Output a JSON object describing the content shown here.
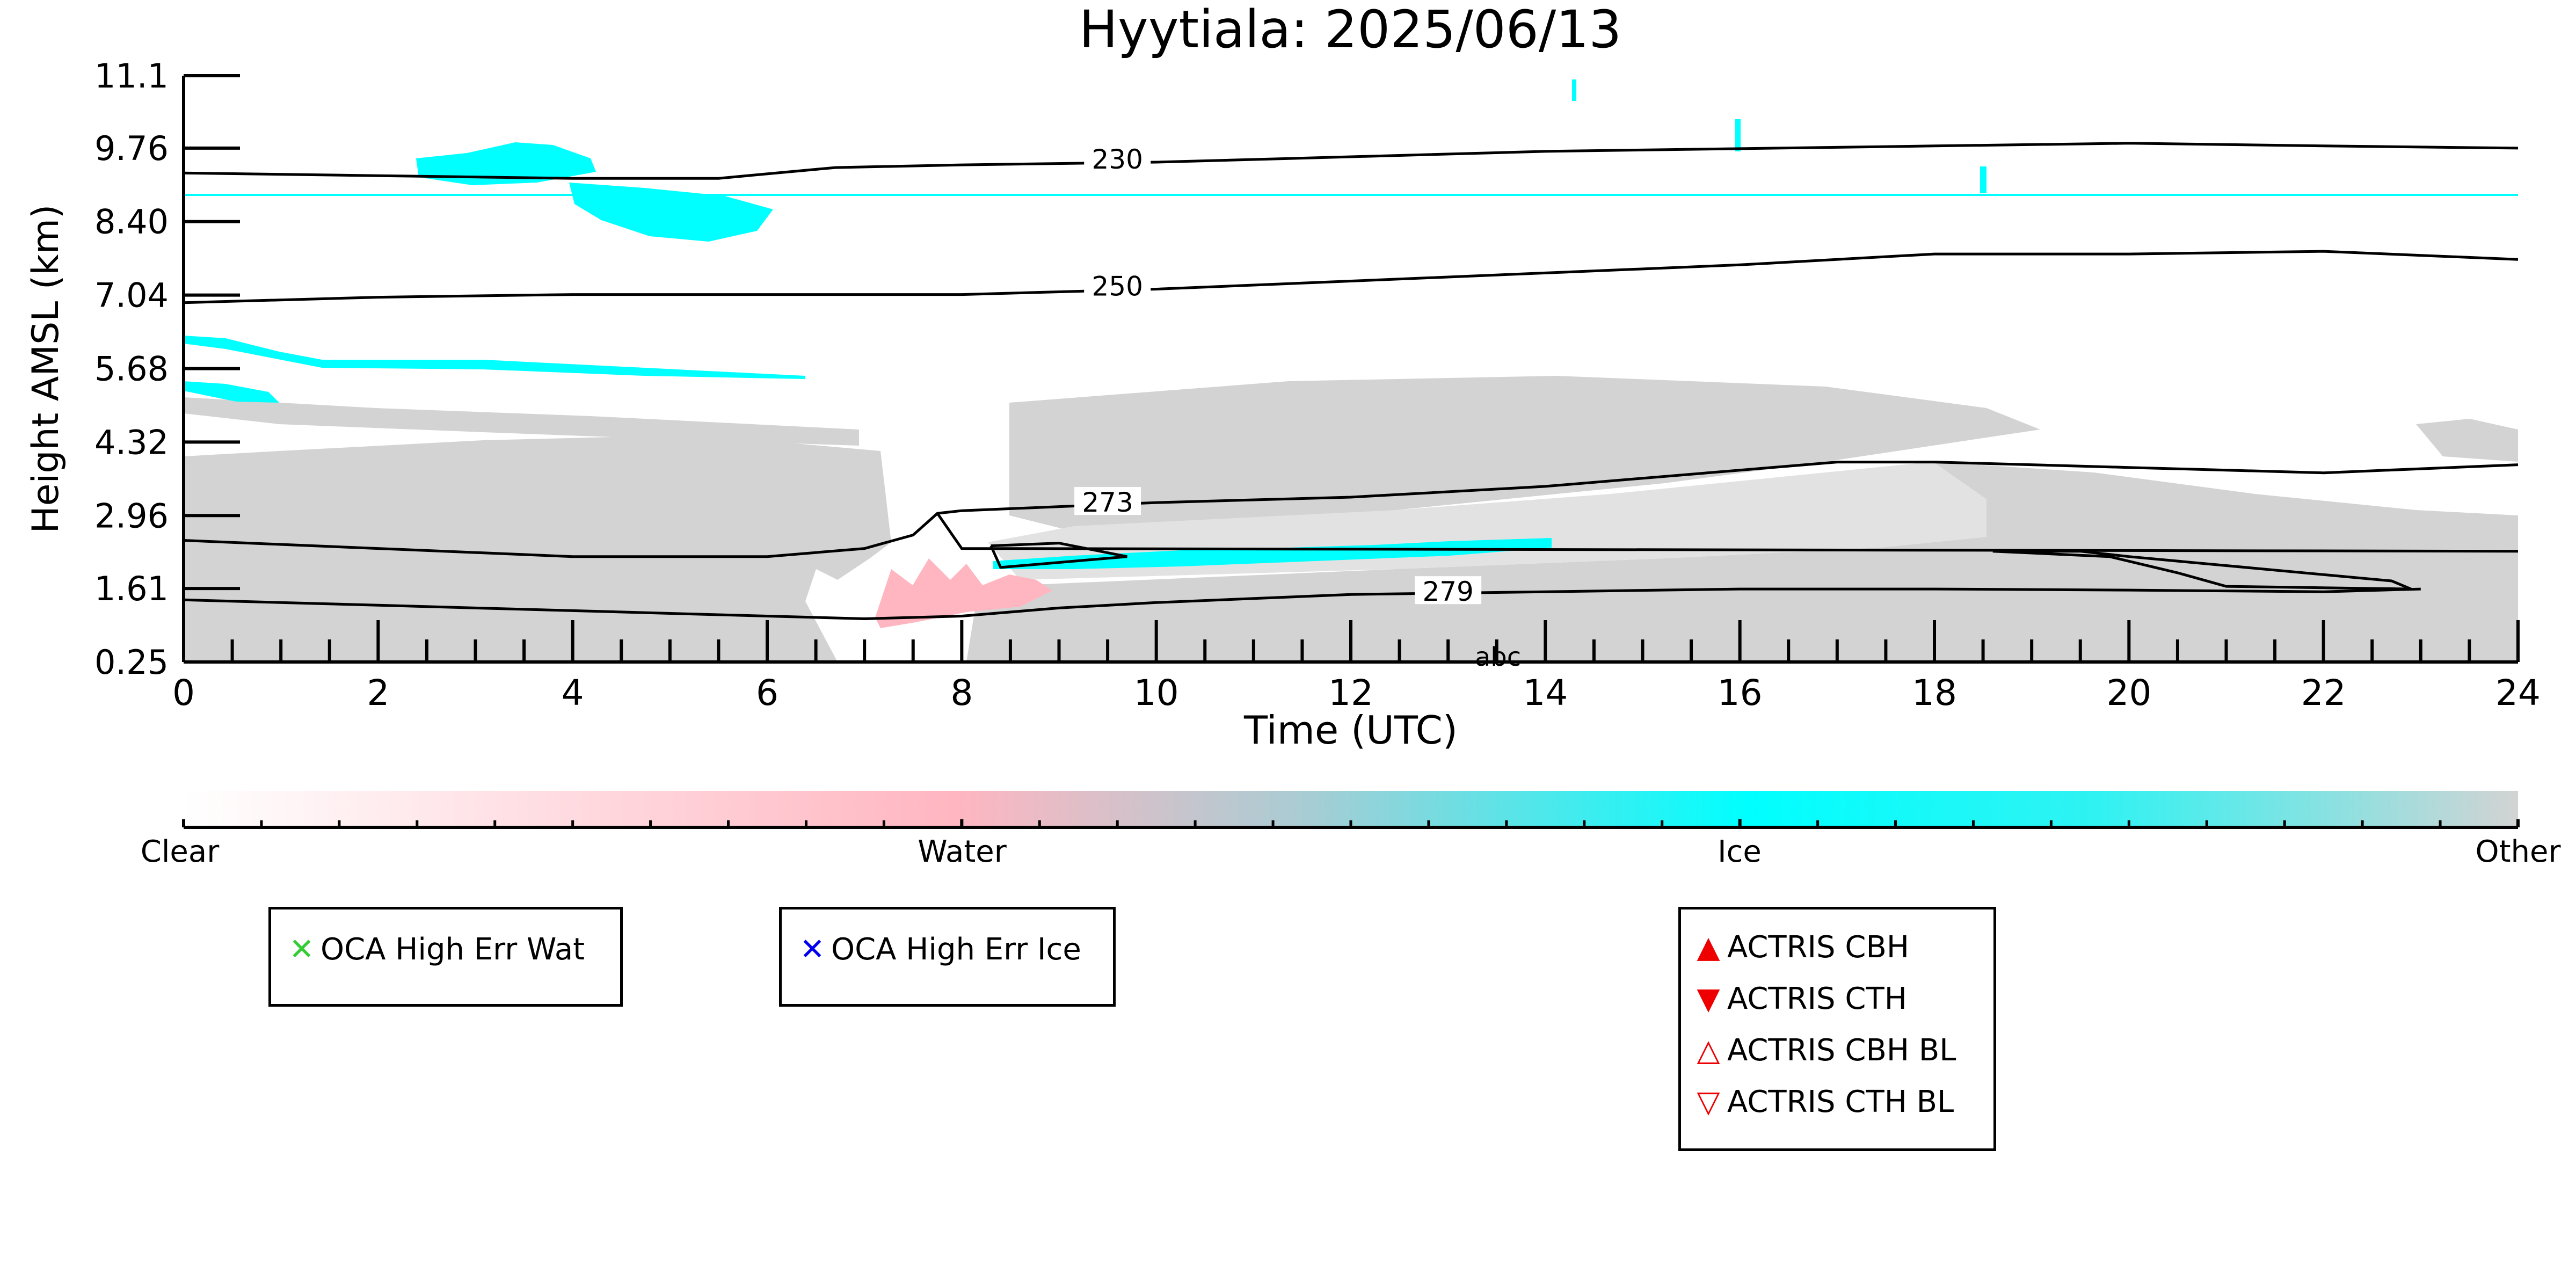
{
  "chart_data": {
    "type": "heatmap",
    "title": "Hyytiala: 2025/06/13",
    "xlabel": "Time (UTC)",
    "ylabel": "Height AMSL (km)",
    "xlim": [
      0,
      24
    ],
    "ylim": [
      0.25,
      11.1
    ],
    "x_ticks": [
      "0",
      "2",
      "4",
      "6",
      "8",
      "10",
      "12",
      "14",
      "16",
      "18",
      "20",
      "22",
      "24"
    ],
    "y_ticks": [
      "0.25",
      "1.61",
      "2.96",
      "4.32",
      "5.68",
      "7.04",
      "8.40",
      "9.76",
      "11.1"
    ],
    "y_tick_values": [
      0.25,
      1.61,
      2.96,
      4.32,
      5.68,
      7.04,
      8.4,
      9.76,
      11.1
    ],
    "categories": [
      "Clear",
      "Water",
      "Ice",
      "Other"
    ],
    "category_colors": {
      "Clear": "#ffffff",
      "Water": "#ffb6c1",
      "Ice": "#00ffff",
      "Other": "#d3d3d3"
    },
    "contours": [
      {
        "label": "230",
        "points": [
          [
            0,
            9.3
          ],
          [
            2,
            9.25
          ],
          [
            4,
            9.2
          ],
          [
            5.5,
            9.2
          ],
          [
            6.7,
            9.4
          ],
          [
            8,
            9.45
          ],
          [
            10,
            9.5
          ],
          [
            12,
            9.6
          ],
          [
            14,
            9.7
          ],
          [
            16,
            9.75
          ],
          [
            18,
            9.8
          ],
          [
            20,
            9.85
          ],
          [
            22,
            9.8
          ],
          [
            24,
            9.76
          ]
        ],
        "label_at": [
          9.6,
          9.5
        ]
      },
      {
        "label": "250",
        "points": [
          [
            0,
            6.9
          ],
          [
            2,
            7.0
          ],
          [
            4,
            7.05
          ],
          [
            6,
            7.05
          ],
          [
            8,
            7.05
          ],
          [
            10,
            7.15
          ],
          [
            12,
            7.3
          ],
          [
            14,
            7.45
          ],
          [
            16,
            7.6
          ],
          [
            18,
            7.8
          ],
          [
            20,
            7.8
          ],
          [
            22,
            7.85
          ],
          [
            24,
            7.7
          ]
        ],
        "label_at": [
          9.6,
          7.15
        ]
      },
      {
        "label": "273",
        "points": [
          [
            0,
            2.5
          ],
          [
            2,
            2.35
          ],
          [
            4,
            2.2
          ],
          [
            6,
            2.2
          ],
          [
            7,
            2.35
          ],
          [
            7.5,
            2.6
          ],
          [
            7.75,
            3.0
          ],
          [
            8,
            3.05
          ],
          [
            10,
            3.2
          ],
          [
            12,
            3.3
          ],
          [
            14,
            3.5
          ],
          [
            16,
            3.8
          ],
          [
            17,
            3.95
          ],
          [
            18,
            3.95
          ],
          [
            20,
            3.85
          ],
          [
            22,
            3.75
          ],
          [
            24,
            3.9
          ]
        ],
        "label_at": [
          9.5,
          3.15
        ]
      },
      {
        "label": "279",
        "points": [
          [
            0,
            1.4
          ],
          [
            2,
            1.3
          ],
          [
            4,
            1.2
          ],
          [
            6,
            1.1
          ],
          [
            7,
            1.05
          ],
          [
            8,
            1.1
          ],
          [
            9,
            1.25
          ],
          [
            10,
            1.35
          ],
          [
            12,
            1.5
          ],
          [
            14,
            1.55
          ],
          [
            16,
            1.6
          ],
          [
            18,
            1.6
          ],
          [
            20,
            1.58
          ],
          [
            22,
            1.55
          ],
          [
            23,
            1.6
          ]
        ],
        "label_at": [
          13.0,
          1.5
        ]
      },
      {
        "label": "",
        "points": [
          [
            8.3,
            2.4
          ],
          [
            9.0,
            2.45
          ],
          [
            9.7,
            2.2
          ],
          [
            8.4,
            2.0
          ],
          [
            8.3,
            2.4
          ]
        ],
        "label_at": null
      },
      {
        "label": "",
        "points": [
          [
            18.6,
            2.3
          ],
          [
            19.5,
            2.3
          ],
          [
            20,
            2.2
          ],
          [
            22.7,
            1.75
          ],
          [
            22.9,
            1.6
          ],
          [
            21,
            1.65
          ],
          [
            20.5,
            1.9
          ],
          [
            19.8,
            2.2
          ],
          [
            18.6,
            2.3
          ]
        ],
        "label_at": null
      },
      {
        "label": "",
        "points": [
          [
            7.75,
            3.0
          ],
          [
            8,
            2.35
          ],
          [
            24,
            2.3
          ]
        ],
        "label_at": null
      }
    ],
    "stray_label": "abc",
    "colorbar": {
      "labels": [
        "Clear",
        "Water",
        "Ice",
        "Other"
      ]
    },
    "legend": {
      "oca_water": {
        "symbol": "✕",
        "color": "#33cc33",
        "label": "OCA High Err Wat"
      },
      "oca_ice": {
        "symbol": "✕",
        "color": "#0000ee",
        "label": "OCA High Err Ice"
      },
      "actris": [
        {
          "symbol": "▲",
          "color": "#ee0000",
          "label": "ACTRIS CBH"
        },
        {
          "symbol": "▼",
          "color": "#ee0000",
          "label": "ACTRIS CTH"
        },
        {
          "symbol": "△",
          "color": "#ee0000",
          "label": "ACTRIS CBH BL"
        },
        {
          "symbol": "▽",
          "color": "#ee0000",
          "label": "ACTRIS CTH BL"
        }
      ]
    }
  }
}
